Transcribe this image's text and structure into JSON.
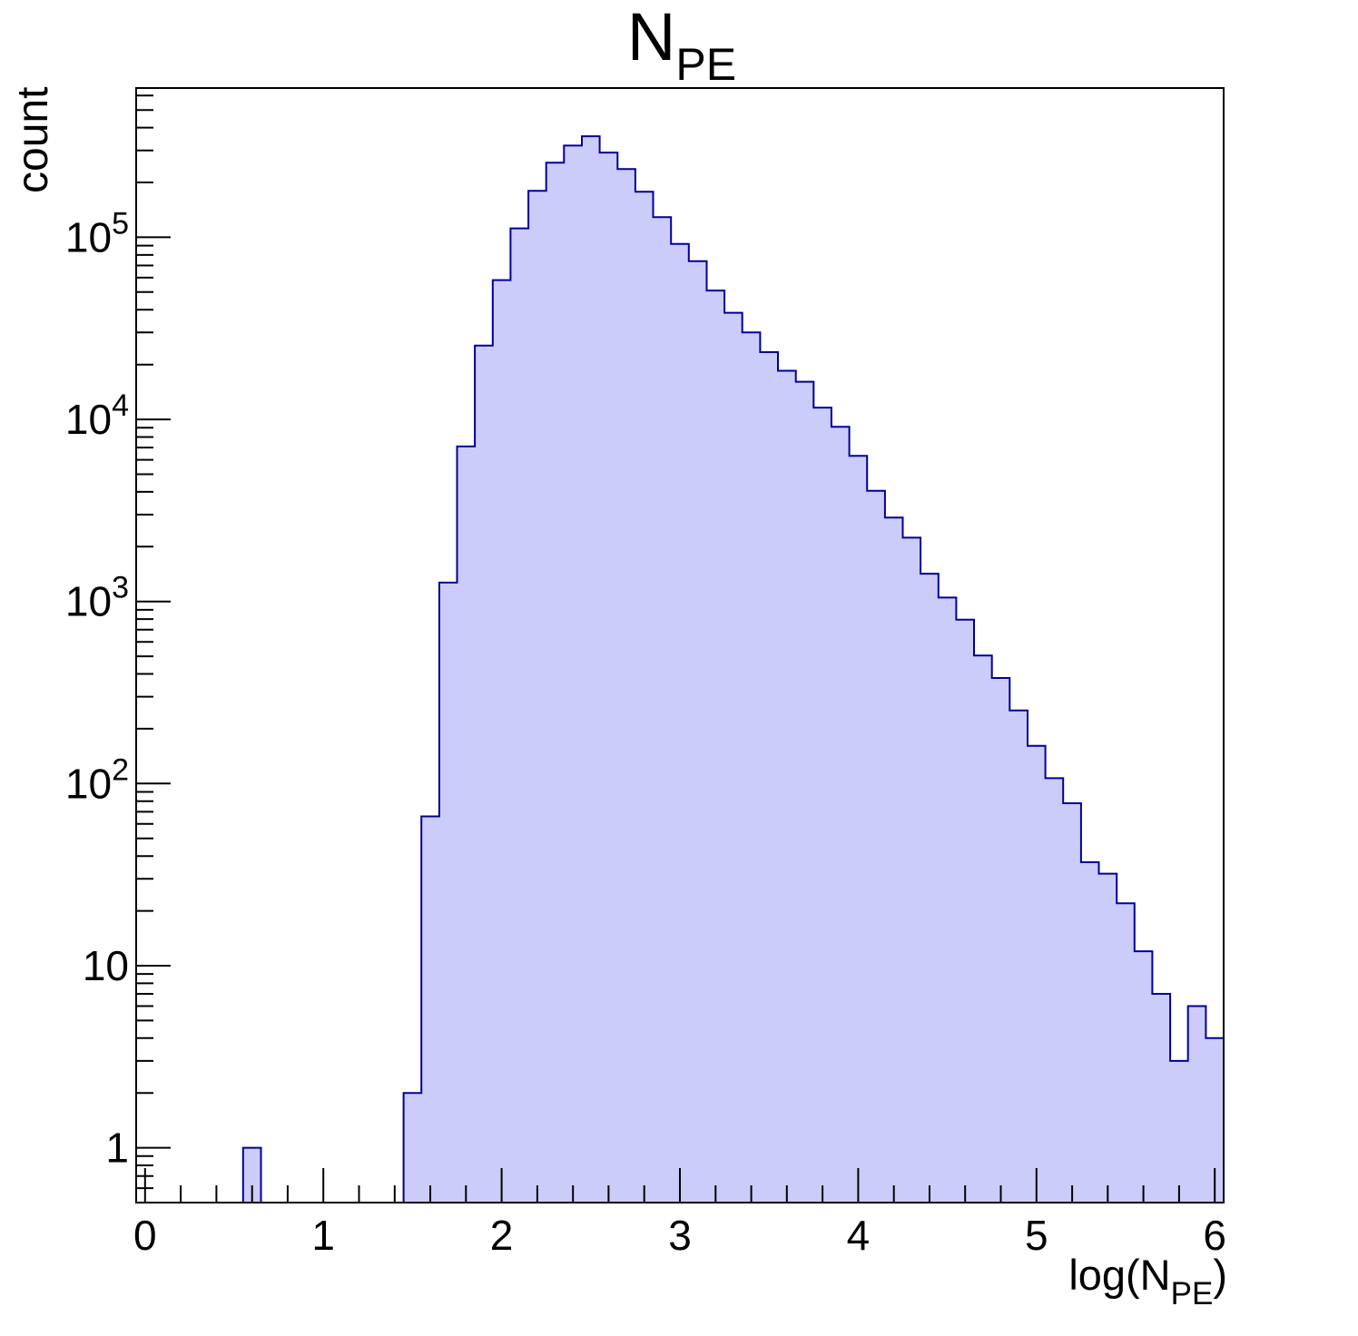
{
  "chart_data": {
    "type": "bar",
    "subtype": "histogram-log-y",
    "title": "N_PE",
    "title_parts": {
      "main": "N",
      "subscript": "PE"
    },
    "xlabel": "log(N_PE)",
    "xlabel_parts": {
      "main": "log(N",
      "subscript": "PE",
      "close": ")"
    },
    "ylabel": "count",
    "x_axis": {
      "min": -0.05,
      "max": 6.05,
      "major_tick_values": [
        0,
        1,
        2,
        3,
        4,
        5,
        6
      ],
      "major_tick_labels": [
        "0",
        "1",
        "2",
        "3",
        "4",
        "5",
        "6"
      ],
      "minor_tick_step": 0.2
    },
    "y_axis": {
      "scale": "log",
      "min": 0.5,
      "max": 660000,
      "major_tick_values": [
        1,
        10,
        100,
        1000,
        10000,
        100000
      ],
      "major_tick_labels": [
        {
          "value": 1,
          "base": "1",
          "exp": ""
        },
        {
          "value": 10,
          "base": "10",
          "exp": ""
        },
        {
          "value": 100,
          "base": "10",
          "exp": "2"
        },
        {
          "value": 1000,
          "base": "10",
          "exp": "3"
        },
        {
          "value": 10000,
          "base": "10",
          "exp": "4"
        },
        {
          "value": 100000,
          "base": "10",
          "exp": "5"
        }
      ]
    },
    "bin_width": 0.1,
    "bin_centers": [
      0.0,
      0.1,
      0.2,
      0.3,
      0.4,
      0.5,
      0.6,
      0.7,
      0.8,
      0.9,
      1.0,
      1.1,
      1.2,
      1.3,
      1.4,
      1.5,
      1.6,
      1.7,
      1.8,
      1.9,
      2.0,
      2.1,
      2.2,
      2.3,
      2.4,
      2.5,
      2.6,
      2.7,
      2.8,
      2.9,
      3.0,
      3.1,
      3.2,
      3.3,
      3.4,
      3.5,
      3.6,
      3.7,
      3.8,
      3.9,
      4.0,
      4.1,
      4.2,
      4.3,
      4.4,
      4.5,
      4.6,
      4.7,
      4.8,
      4.9,
      5.0,
      5.1,
      5.2,
      5.3,
      5.4,
      5.5,
      5.6,
      5.7,
      5.8,
      5.9,
      6.0
    ],
    "values": [
      0,
      0,
      0,
      0,
      0,
      0,
      1,
      0,
      0,
      0,
      0,
      0,
      0,
      0,
      0,
      2,
      66,
      1270,
      7100,
      25400,
      58200,
      112000,
      180000,
      257000,
      319000,
      359000,
      292000,
      237000,
      178000,
      129000,
      92000,
      74000,
      51000,
      38500,
      30000,
      23400,
      18500,
      16100,
      11600,
      9100,
      6300,
      4050,
      2890,
      2240,
      1420,
      1050,
      794,
      505,
      380,
      252,
      161,
      107,
      78,
      37,
      32,
      22,
      12,
      7,
      3,
      6,
      4
    ],
    "legend": "none",
    "grid": "off",
    "colors": {
      "bar_fill": "#ccccfa",
      "bar_line": "#000099",
      "axis_line": "#000000",
      "text": "#000000",
      "background": "#ffffff"
    }
  }
}
